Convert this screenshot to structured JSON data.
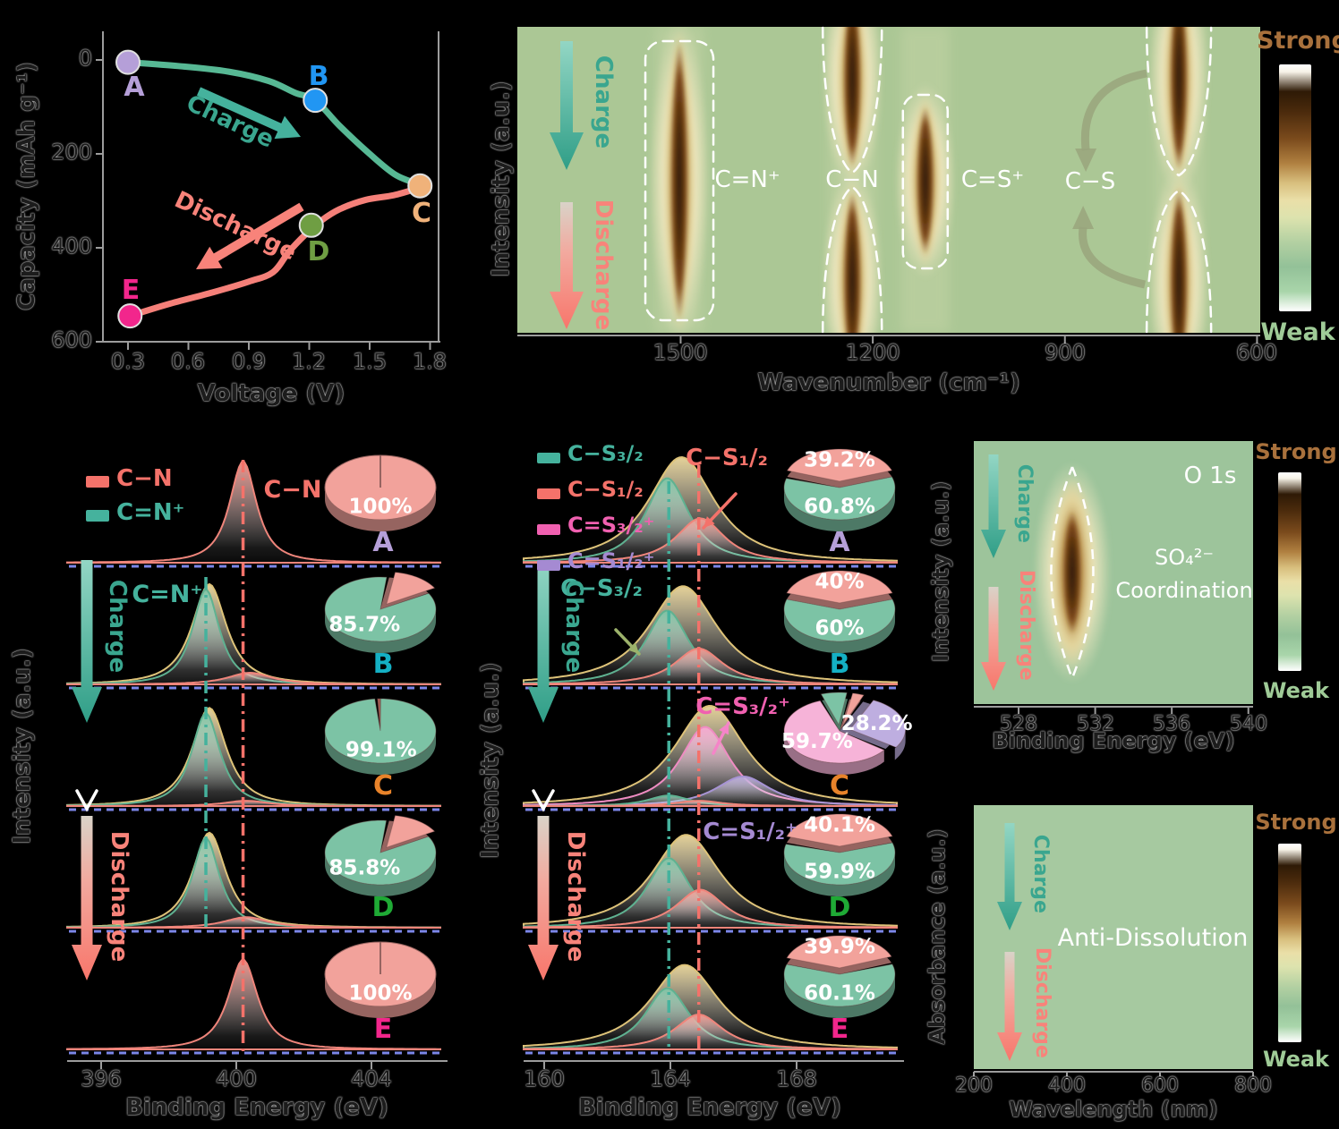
{
  "colors": {
    "charge": "#3aa68f",
    "discharge": "#f8837a",
    "strong": "#a9713c",
    "weak": "#9fcb97",
    "baseline_blue": "#7b86e8",
    "envelope_tan": "#eeda9e",
    "map_background": "#abc795"
  },
  "chart_data": [
    {
      "id": "charge-discharge-curve",
      "type": "line",
      "xlabel": "Voltage (V)",
      "ylabel": "Capacity (mAh g⁻¹)",
      "xticks": [
        "0.3",
        "0.6",
        "0.9",
        "1.2",
        "1.5",
        "1.8"
      ],
      "yticks": [
        "0",
        "200",
        "400",
        "600"
      ],
      "xlim": [
        0.17,
        1.85
      ],
      "ylim": [
        600,
        0
      ],
      "y_axis_reversed": true,
      "grid": false,
      "annotations": {
        "charge": "Charge",
        "discharge": "Discharge"
      },
      "series": [
        {
          "name": "Charge",
          "color": "#57b894",
          "x": [
            0.3,
            0.55,
            0.8,
            1.0,
            1.13,
            1.23,
            1.35,
            1.5,
            1.63,
            1.75
          ],
          "y": [
            5,
            13,
            25,
            45,
            70,
            86,
            140,
            200,
            245,
            265
          ]
        },
        {
          "name": "Discharge",
          "color": "#f58079",
          "x": [
            1.75,
            1.62,
            1.48,
            1.35,
            1.26,
            1.18,
            1.1,
            1.02,
            0.9,
            0.72,
            0.5,
            0.31
          ],
          "y": [
            272,
            288,
            298,
            318,
            342,
            372,
            408,
            452,
            472,
            495,
            520,
            545
          ]
        }
      ],
      "markers": [
        {
          "label": "A",
          "voltage": 0.3,
          "capacity": 5,
          "color": "#b59fd8"
        },
        {
          "label": "B",
          "voltage": 1.23,
          "capacity": 86,
          "color": "#2196f3"
        },
        {
          "label": "C",
          "voltage": 1.75,
          "capacity": 268,
          "color": "#f0b27a"
        },
        {
          "label": "D",
          "voltage": 1.21,
          "capacity": 352,
          "color": "#6f9e43"
        },
        {
          "label": "E",
          "voltage": 0.31,
          "capacity": 545,
          "color": "#f2268c"
        }
      ]
    },
    {
      "id": "insitu-ftir-map",
      "type": "heatmap",
      "xlabel": "Wavenumber (cm⁻¹)",
      "ylabel": "Intensity (a.u.)",
      "xticks": [
        "1500",
        "1200",
        "900",
        "600"
      ],
      "xlim": [
        1755,
        595
      ],
      "x_axis_reversed": true,
      "flow": {
        "charge": "Charge",
        "discharge": "Discharge"
      },
      "colorbar": {
        "strong": "Strong",
        "weak": "Weak"
      },
      "bands": [
        {
          "label": "C=N⁺",
          "wavenumber": 1502,
          "profile": "full-height",
          "outline": "rounded-rect"
        },
        {
          "label": "C−N",
          "wavenumber": 1232,
          "profile": "split-lobes",
          "outline": "dashed-lobes"
        },
        {
          "label": "C=S⁺",
          "wavenumber": 1118,
          "profile": "center",
          "outline": "rounded-rect"
        },
        {
          "label": "C−S",
          "wavenumber": 722,
          "profile": "split-lobes",
          "outline": "dashed-lobes",
          "transfer_arrows": true
        }
      ]
    },
    {
      "id": "xps-n1s",
      "type": "area",
      "element": "N 1s",
      "xlabel": "Binding Energy (eV)",
      "ylabel": "Intensity (a.u.)",
      "xticks": [
        "396",
        "400",
        "404"
      ],
      "xlim": [
        395.0,
        406.05
      ],
      "flow": {
        "charge": "Charge",
        "discharge": "Discharge"
      },
      "legend": [
        {
          "label": "C−N",
          "color": "#f4726a"
        },
        {
          "label": "C=N⁺",
          "color": "#45b29d"
        }
      ],
      "ref_lines": [
        {
          "species": "C=N⁺",
          "eV": 399.1,
          "color": "#45b29d"
        },
        {
          "species": "C−N",
          "eV": 400.2,
          "color": "#f4726a"
        }
      ],
      "peak_annotations": [
        {
          "text": "C−N",
          "color": "#f4726a"
        },
        {
          "text": "C=N⁺",
          "color": "#45b29d"
        }
      ],
      "rows": [
        {
          "label": "A",
          "label_color": "#b59fd8",
          "peaks": [
            {
              "species": "C−N",
              "color": "salmon",
              "center": 400.2,
              "height": 0.96,
              "width": 0.55
            }
          ],
          "pie": {
            "start": -90,
            "slices": [
              {
                "species": "C−N",
                "pct": 100,
                "label": "100%",
                "color": "salmon"
              }
            ]
          }
        },
        {
          "label": "B",
          "label_color": "#14b0c4",
          "envelope": {
            "center": 399.2,
            "height": 0.95,
            "width": 0.7
          },
          "peaks": [
            {
              "species": "C=N⁺",
              "color": "green",
              "center": 399.1,
              "height": 0.9,
              "width": 0.55
            },
            {
              "species": "C−N",
              "color": "salmon",
              "center": 400.4,
              "height": 0.11,
              "width": 0.9
            }
          ],
          "pie": {
            "start": -81,
            "slices": [
              {
                "species": "C−N",
                "pct": 14.3,
                "color": "salmon",
                "explode": true
              },
              {
                "species": "C=N⁺",
                "pct": 85.7,
                "label": "85.7%",
                "color": "green"
              }
            ]
          }
        },
        {
          "label": "C",
          "label_color": "#e8832a",
          "envelope": {
            "center": 399.2,
            "height": 0.93,
            "width": 0.7
          },
          "peaks": [
            {
              "species": "C=N⁺",
              "color": "green",
              "center": 399.1,
              "height": 0.88,
              "width": 0.58
            },
            {
              "species": "C−N",
              "color": "salmon",
              "center": 400.3,
              "height": 0.05,
              "width": 0.9
            }
          ],
          "pie": {
            "start": -93,
            "slices": [
              {
                "species": "C−N",
                "pct": 0.9,
                "color": "maroon"
              },
              {
                "species": "C=N⁺",
                "pct": 99.1,
                "label": "99.1%",
                "color": "green"
              }
            ]
          }
        },
        {
          "label": "D",
          "label_color": "#1faa35",
          "envelope": {
            "center": 399.2,
            "height": 0.9,
            "width": 0.68
          },
          "peaks": [
            {
              "species": "C=N⁺",
              "color": "green",
              "center": 399.1,
              "height": 0.85,
              "width": 0.55
            },
            {
              "species": "C−N",
              "color": "salmon",
              "center": 400.3,
              "height": 0.1,
              "width": 0.9
            }
          ],
          "pie": {
            "start": -81,
            "slices": [
              {
                "species": "C−N",
                "pct": 14.2,
                "color": "salmon",
                "explode": true
              },
              {
                "species": "C=N⁺",
                "pct": 85.8,
                "label": "85.8%",
                "color": "green"
              }
            ]
          }
        },
        {
          "label": "E",
          "label_color": "#f2268c",
          "peaks": [
            {
              "species": "C−N",
              "color": "salmon",
              "center": 400.2,
              "height": 0.85,
              "width": 0.6
            }
          ],
          "pie": {
            "start": -90,
            "slices": [
              {
                "species": "C−N",
                "pct": 100,
                "label": "100%",
                "color": "salmon"
              }
            ]
          }
        }
      ]
    },
    {
      "id": "xps-s2p",
      "type": "area",
      "element": "S 2p",
      "xlabel": "Binding Energy (eV)",
      "ylabel": "Intensity (a.u.)",
      "xticks": [
        "160",
        "164",
        "168"
      ],
      "xlim": [
        159.35,
        171.1
      ],
      "flow": {
        "charge": "Charge",
        "discharge": "Discharge"
      },
      "legend": [
        {
          "label": "C−S₃/₂",
          "color": "#45b29d"
        },
        {
          "label": "C−S₁/₂",
          "color": "#f4726a"
        },
        {
          "label": "C=S₃/₂⁺",
          "color": "#f060b0"
        },
        {
          "label": "C=S₁/₂⁺",
          "color": "#a58ad2"
        }
      ],
      "ref_lines": [
        {
          "species": "C−S₃/₂",
          "eV": 163.95,
          "color": "#45b29d"
        },
        {
          "species": "C−S₁/₂",
          "eV": 164.9,
          "color": "#f4726a"
        }
      ],
      "peak_annotations": [
        {
          "text": "C−S₁/₂",
          "color": "#f4726a"
        },
        {
          "text": "C−S₃/₂",
          "color": "#45b29d"
        },
        {
          "text": "C=S₃/₂⁺",
          "color": "#f060b0"
        },
        {
          "text": "C=S₁/₂⁺",
          "color": "#a58ad2"
        }
      ],
      "rows": [
        {
          "label": "A",
          "label_color": "#b59fd8",
          "envelope": {
            "center": 164.35,
            "height": 1.0,
            "width": 1.45
          },
          "peaks": [
            {
              "species": "C−S₃/₂",
              "color": "green",
              "center": 163.9,
              "height": 0.8,
              "width": 0.95
            },
            {
              "species": "C−S₁/₂",
              "color": "salmon",
              "center": 164.95,
              "height": 0.42,
              "width": 1.05
            }
          ],
          "pie": {
            "start": -160.6,
            "slices": [
              {
                "species": "C−S₁/₂",
                "pct": 39.2,
                "label": "39.2%",
                "color": "salmon",
                "explode": true
              },
              {
                "species": "C−S₃/₂",
                "pct": 60.8,
                "label": "60.8%",
                "color": "green"
              }
            ]
          }
        },
        {
          "label": "B",
          "label_color": "#14b0c4",
          "envelope": {
            "center": 164.4,
            "height": 0.93,
            "width": 1.5
          },
          "peaks": [
            {
              "species": "C−S₃/₂",
              "color": "green",
              "center": 163.9,
              "height": 0.7,
              "width": 0.95
            },
            {
              "species": "C−S₁/₂",
              "color": "salmon",
              "center": 164.9,
              "height": 0.34,
              "width": 1.05
            }
          ],
          "pie": {
            "start": -162,
            "slices": [
              {
                "species": "C−S₁/₂",
                "pct": 40,
                "label": "40%",
                "color": "salmon",
                "explode": true
              },
              {
                "species": "C−S₃/₂",
                "pct": 60,
                "label": "60%",
                "color": "green"
              }
            ]
          }
        },
        {
          "label": "C",
          "label_color": "#e8832a",
          "envelope": {
            "center": 165.25,
            "height": 0.95,
            "width": 1.55
          },
          "peaks": [
            {
              "species": "C=S₃/₂⁺",
              "color": "pink",
              "center": 165.1,
              "height": 0.75,
              "width": 1.1
            },
            {
              "species": "C=S₁/₂⁺",
              "color": "purple",
              "center": 166.3,
              "height": 0.28,
              "width": 1.2
            },
            {
              "species": "C−S₃/₂",
              "color": "green",
              "center": 163.95,
              "height": 0.1,
              "width": 0.9
            },
            {
              "species": "C−S₁/₂",
              "color": "salmon",
              "center": 164.9,
              "height": 0.05,
              "width": 1.0
            }
          ],
          "pie": {
            "start": -65,
            "slices": [
              {
                "species": "C=S₁/₂⁺",
                "pct": 28.2,
                "label": "28.2%",
                "color": "purple",
                "explode": true
              },
              {
                "species": "C=S₃/₂⁺",
                "pct": 59.7,
                "label": "59.7%",
                "color": "pink"
              },
              {
                "species": "C−S₃/₂",
                "pct": 8.0,
                "color": "green",
                "explode": true
              },
              {
                "species": "C−S₁/₂",
                "pct": 4.1,
                "color": "salmon",
                "explode": true
              }
            ]
          }
        },
        {
          "label": "D",
          "label_color": "#1faa35",
          "envelope": {
            "center": 164.5,
            "height": 0.88,
            "width": 1.5
          },
          "peaks": [
            {
              "species": "C−S₃/₂",
              "color": "green",
              "center": 163.95,
              "height": 0.66,
              "width": 0.95
            },
            {
              "species": "C−S₁/₂",
              "color": "salmon",
              "center": 164.95,
              "height": 0.36,
              "width": 1.05
            }
          ],
          "pie": {
            "start": -162.2,
            "slices": [
              {
                "species": "C−S₁/₂",
                "pct": 40.1,
                "label": "40.1%",
                "color": "salmon",
                "explode": true
              },
              {
                "species": "C−S₃/₂",
                "pct": 59.9,
                "label": "59.9%",
                "color": "green"
              }
            ]
          }
        },
        {
          "label": "E",
          "label_color": "#f2268c",
          "envelope": {
            "center": 164.45,
            "height": 0.8,
            "width": 1.5
          },
          "peaks": [
            {
              "species": "C−S₃/₂",
              "color": "green",
              "center": 163.9,
              "height": 0.58,
              "width": 0.95
            },
            {
              "species": "C−S₁/₂",
              "color": "salmon",
              "center": 164.9,
              "height": 0.33,
              "width": 1.05
            }
          ],
          "pie": {
            "start": -161.8,
            "slices": [
              {
                "species": "C−S₁/₂",
                "pct": 39.9,
                "label": "39.9%",
                "color": "salmon",
                "explode": true
              },
              {
                "species": "C−S₃/₂",
                "pct": 60.1,
                "label": "60.1%",
                "color": "green"
              }
            ]
          }
        }
      ]
    },
    {
      "id": "xps-o1s-map",
      "type": "heatmap",
      "title": "O 1s",
      "xlabel": "Binding Energy (eV)",
      "ylabel": "Intensity (a.u.)",
      "xticks": [
        "528",
        "532",
        "536",
        "540"
      ],
      "xlim": [
        525.66,
        540.25
      ],
      "flow": {
        "charge": "Charge",
        "discharge": "Discharge"
      },
      "colorbar": {
        "strong": "Strong",
        "weak": "Weak"
      },
      "annotation": {
        "line1": "SO₄²⁻",
        "line2": "Coordination"
      },
      "features": [
        {
          "center_eV": 530.8,
          "extent": "full-cycle lens-shaped hot spot"
        }
      ]
    },
    {
      "id": "uv-vis-map",
      "type": "heatmap",
      "xlabel": "Wavelength (nm)",
      "ylabel": "Absorbance (a.u.)",
      "xticks": [
        "200",
        "400",
        "600",
        "800"
      ],
      "xlim": [
        200,
        800
      ],
      "flow": {
        "charge": "Charge",
        "discharge": "Discharge"
      },
      "colorbar": {
        "strong": "Strong",
        "weak": "Weak"
      },
      "annotation": "Anti-Dissolution",
      "features": []
    }
  ]
}
